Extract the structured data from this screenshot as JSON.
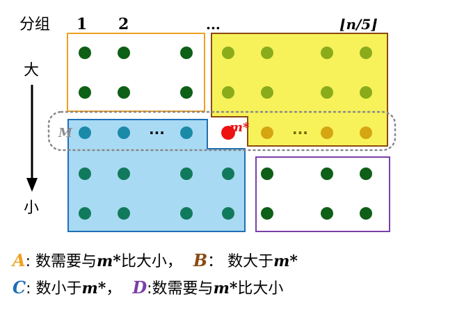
{
  "header": {
    "group_label": "分组",
    "columns": [
      "1",
      "2",
      "...",
      "⌊n/5⌋"
    ]
  },
  "axis": {
    "top_label": "大",
    "bottom_label": "小"
  },
  "labels": {
    "median_row": "M",
    "median_point": "m*",
    "ellipsis": "···"
  },
  "legend": {
    "a": {
      "letter": "A",
      "text": ": 数需要与",
      "var": "m*",
      "tail": "比大小，"
    },
    "b": {
      "letter": "B",
      "text": "：  数大于",
      "var": "m*",
      "tail": ""
    },
    "c": {
      "letter": "C",
      "text": ": 数小于",
      "var": "m*",
      "tail": "，"
    },
    "d": {
      "letter": "D",
      "text": ":数需要与",
      "var": "m*",
      "tail": "比大小"
    }
  },
  "colors": {
    "dark_green": "#0e5f17",
    "olive": "#8aac1a",
    "gold": "#d6a512",
    "teal": "#1a8aa8",
    "sea_green": "#127a5c",
    "red": "#ee1111",
    "box_a": "#f0a020",
    "box_b": "#8a4a10",
    "box_c": "#1e6fb5",
    "box_d": "#7a3fa8",
    "fill_b": "#f7f25a",
    "fill_c": "#a9daf3",
    "median_label": "#8f8f8f"
  }
}
